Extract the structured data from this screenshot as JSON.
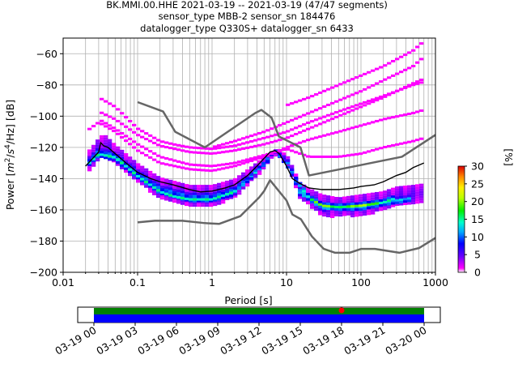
{
  "chart_data": {
    "type": "heatmap",
    "title_lines": [
      "BK.MMI.00.HHE   2021-03-19 -- 2021-03-19  (47/47 segments)",
      "sensor_type MBB-2 sensor_sn 184476",
      "datalogger_type Q330S+ datalogger_sn 6433"
    ],
    "xlabel": "Period [s]",
    "ylabel_parts": [
      "Power [",
      "m",
      "2",
      "/",
      "s",
      "4",
      "/Hz] [dB]"
    ],
    "x_scale": "log",
    "xlim": [
      0.01,
      1000
    ],
    "ylim": [
      -200,
      -50
    ],
    "x_ticks": [
      0.01,
      0.1,
      1,
      10,
      100,
      1000
    ],
    "x_tick_labels": [
      "0.01",
      "0.1",
      "1",
      "10",
      "100",
      "1000"
    ],
    "y_ticks": [
      -200,
      -180,
      -160,
      -140,
      -120,
      -100,
      -80,
      -60
    ],
    "y_tick_labels": [
      "−200",
      "−180",
      "−160",
      "−140",
      "−120",
      "−100",
      "−80",
      "−60"
    ],
    "grid": true,
    "colorbar": {
      "label": "[%]",
      "range": [
        0,
        30
      ],
      "ticks": [
        0,
        5,
        10,
        15,
        20,
        25,
        30
      ],
      "tick_labels": [
        "0",
        "5",
        "10",
        "15",
        "20",
        "25",
        "30"
      ]
    },
    "mode_line": {
      "name": "mode",
      "color": "#000000",
      "x": [
        0.02,
        0.025,
        0.03,
        0.032,
        0.035,
        0.04,
        0.05,
        0.07,
        0.1,
        0.15,
        0.2,
        0.3,
        0.5,
        0.7,
        1,
        1.5,
        2,
        3,
        4,
        5,
        6,
        7,
        8,
        10,
        12,
        15,
        20,
        30,
        50,
        80,
        100,
        150,
        200,
        300,
        400,
        500,
        700
      ],
      "y": [
        -132,
        -127,
        -123,
        -117,
        -119,
        -120,
        -124,
        -130,
        -136,
        -140,
        -142,
        -144,
        -147,
        -148.5,
        -148,
        -146,
        -144,
        -138,
        -132,
        -127,
        -123,
        -122,
        -124,
        -132,
        -140,
        -143,
        -146,
        -147,
        -147,
        -146,
        -145,
        -144,
        -142,
        -138,
        -136,
        -133,
        -130
      ]
    },
    "noise_models": [
      {
        "name": "high-noise",
        "color": "#666666",
        "x": [
          0.1,
          0.22,
          0.32,
          0.8,
          3.8,
          4.6,
          6.3,
          7.9,
          15.4,
          20,
          354.8,
          1000
        ],
        "y": [
          -91,
          -97,
          -110,
          -120,
          -98,
          -96,
          -101,
          -113,
          -120,
          -138,
          -126,
          -112
        ]
      },
      {
        "name": "low-noise",
        "color": "#666666",
        "x": [
          0.1,
          0.17,
          0.4,
          0.8,
          1.24,
          2.4,
          4.3,
          5,
          6,
          10,
          12,
          15.6,
          21.9,
          31.6,
          45,
          70,
          101,
          154,
          328,
          600,
          1000
        ],
        "y": [
          -168,
          -167,
          -167,
          -168.5,
          -169,
          -164,
          -152,
          -148,
          -141,
          -154,
          -163,
          -166,
          -177,
          -185,
          -187.5,
          -187.5,
          -185,
          -185,
          -187.5,
          -184.5,
          -178
        ]
      }
    ],
    "density_bands": [
      {
        "x": [
          0.02,
          0.025,
          0.03,
          0.035,
          0.05,
          0.1,
          0.2,
          0.5,
          1,
          2,
          3,
          5,
          7,
          10,
          15,
          20,
          30,
          50,
          100,
          200,
          300,
          500,
          700
        ],
        "y_low": [
          -137,
          -133,
          -128,
          -124,
          -130,
          -142,
          -152,
          -157,
          -157,
          -152,
          -144,
          -133,
          -124,
          -130,
          -152,
          -156,
          -164,
          -164,
          -163,
          -160,
          -157,
          -155,
          -154
        ],
        "y_high": [
          -124,
          -119,
          -114,
          -111,
          -118,
          -130,
          -139,
          -144,
          -144,
          -140,
          -134,
          -126,
          -121,
          -124,
          -142,
          -146,
          -150,
          -152,
          -150,
          -148,
          -145,
          -144,
          -143
        ],
        "percent": 3
      },
      {
        "x": [
          0.02,
          0.03,
          0.05,
          0.1,
          0.2,
          0.5,
          1,
          2,
          3,
          5,
          7,
          10,
          15,
          20,
          30,
          50,
          100,
          200,
          500
        ],
        "y_low": [
          -134,
          -126,
          -128,
          -140,
          -150,
          -155,
          -155,
          -150,
          -142,
          -131,
          -123,
          -128,
          -150,
          -154,
          -160,
          -160,
          -160,
          -157,
          -154
        ],
        "y_high": [
          -128,
          -120,
          -123,
          -134,
          -144,
          -149,
          -149,
          -145,
          -138,
          -129,
          -122,
          -126,
          -145,
          -150,
          -155,
          -156,
          -156,
          -153,
          -150
        ],
        "percent": 12
      },
      {
        "x": [
          0.02,
          0.03,
          0.05,
          0.1,
          0.2,
          0.3,
          0.5,
          1,
          2,
          3,
          5,
          7,
          20,
          30,
          50,
          100,
          200,
          300
        ],
        "y_low": [
          -132,
          -124,
          -126,
          -138,
          -148,
          -151,
          -153,
          -153,
          -148,
          -140,
          -130,
          -122,
          -152,
          -158,
          -158,
          -158,
          -155,
          -152
        ],
        "y_high": [
          -130,
          -122,
          -124,
          -136,
          -146,
          -149,
          -151,
          -151,
          -146,
          -139,
          -129,
          -121,
          -150,
          -155,
          -156,
          -155,
          -153,
          -150
        ],
        "percent": 20
      }
    ],
    "sparse_traces": [
      {
        "x": [
          0.03,
          0.05,
          0.1,
          0.2,
          0.3,
          0.5,
          1,
          2,
          5,
          10,
          20,
          50,
          100,
          200,
          300,
          500,
          700
        ],
        "y": [
          -88,
          -94,
          -108,
          -116,
          -118,
          -120,
          -121,
          -119,
          -114,
          -110,
          -104,
          -97,
          -92,
          -87,
          -84,
          -80,
          -78
        ],
        "percent": 1
      },
      {
        "x": [
          0.03,
          0.05,
          0.1,
          0.2,
          0.5,
          1,
          2,
          5,
          10,
          20,
          50,
          100,
          200,
          500,
          700
        ],
        "y": [
          -97,
          -102,
          -112,
          -119,
          -123,
          -124,
          -122,
          -118,
          -114,
          -108,
          -100,
          -94,
          -88,
          -79,
          -76
        ],
        "percent": 1
      },
      {
        "x": [
          0.02,
          0.03,
          0.05,
          0.1,
          0.2,
          0.5,
          1,
          2,
          5,
          10,
          20,
          50,
          100,
          200,
          500,
          700
        ],
        "y": [
          -110,
          -104,
          -110,
          -122,
          -130,
          -134,
          -135,
          -132,
          -126,
          -120,
          -115,
          -110,
          -106,
          -102,
          -98,
          -96
        ],
        "percent": 1
      },
      {
        "x": [
          1,
          2,
          5,
          10,
          20,
          50,
          100,
          200,
          500,
          700
        ],
        "y": [
          -120,
          -116,
          -110,
          -104,
          -98,
          -90,
          -84,
          -77,
          -68,
          -62
        ],
        "percent": 1
      },
      {
        "x": [
          10,
          20,
          50,
          100,
          200,
          500,
          700
        ],
        "y": [
          -93,
          -88,
          -80,
          -74,
          -68,
          -58,
          -52
        ],
        "percent": 1
      },
      {
        "x": [
          0.03,
          0.05,
          0.1,
          0.2,
          0.5,
          1,
          2,
          5,
          10,
          20,
          50,
          100,
          200,
          500,
          700
        ],
        "y": [
          -102,
          -108,
          -118,
          -126,
          -131,
          -132,
          -130,
          -125,
          -121,
          -126,
          -126,
          -124,
          -120,
          -116,
          -114
        ],
        "percent": 1
      }
    ],
    "timeline": {
      "labels": [
        "03-19 00",
        "03-19 03",
        "03-19 06",
        "03-19 09",
        "03-19 12",
        "03-19 15",
        "03-19 18",
        "03-19 21",
        "03-20 00"
      ],
      "data_fraction_start": 0,
      "data_fraction_end": 1,
      "data_bar_color": "#0000ff",
      "used_bar_color": "#008000",
      "gap_marker_hour": 18,
      "gap_marker_color": "#ff0000"
    }
  }
}
